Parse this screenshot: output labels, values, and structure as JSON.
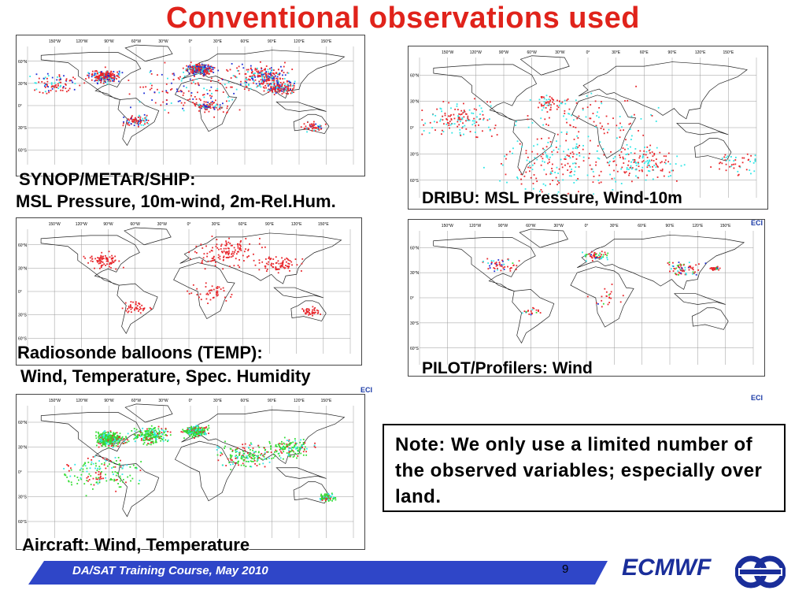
{
  "title": "Conventional observations used",
  "panels": {
    "synop": {
      "caption_line1": "SYNOP/METAR/SHIP:",
      "caption_line2": "MSL Pressure, 10m-wind, 2m-Rel.Hum.",
      "dot_colors": [
        "#e8262b",
        "#1f2fd6",
        "#2ee6e6"
      ]
    },
    "dribu": {
      "caption": "DRIBU: MSL Pressure, Wind-10m",
      "dot_colors": [
        "#e8262b",
        "#2ee6e6"
      ]
    },
    "temp": {
      "caption_line1": "Radiosonde balloons (TEMP):",
      "caption_line2": "Wind, Temperature, Spec. Humidity",
      "dot_colors": [
        "#e8262b"
      ]
    },
    "pilot": {
      "caption": "PILOT/Profilers: Wind",
      "dot_colors": [
        "#e8262b",
        "#1f2fd6",
        "#2ee6e6",
        "#33dd33"
      ]
    },
    "aircraft": {
      "caption": "Aircraft: Wind, Temperature",
      "dot_colors": [
        "#33dd33",
        "#2ee6e6",
        "#e8262b"
      ]
    }
  },
  "map_axes": {
    "lon_labels": [
      "150°W",
      "120°W",
      "90°W",
      "60°W",
      "30°W",
      "0°",
      "30°E",
      "60°E",
      "90°E",
      "120°E",
      "150°E"
    ],
    "lat_labels": [
      "60°N",
      "30°N",
      "0°",
      "30°S",
      "60°S"
    ]
  },
  "corner_logo_text": "ECI",
  "note": "Note: We only use a limited number of the observed variables; especially over land.",
  "footer": {
    "course": "DA/SAT Training Course,  May 2010",
    "page": "9",
    "org": "ECMWF",
    "band_color": "#2f46c8"
  }
}
